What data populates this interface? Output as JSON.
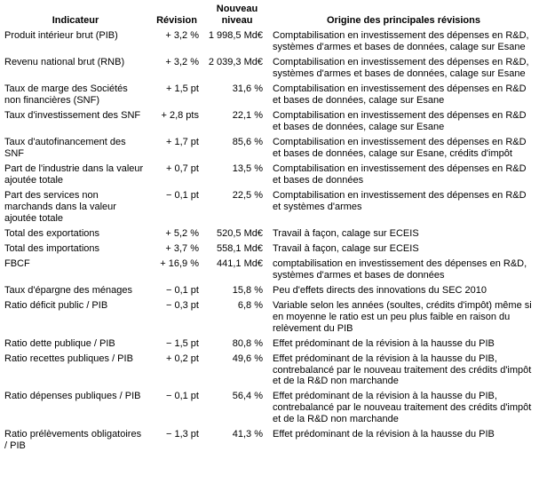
{
  "table": {
    "headers": {
      "indicateur": "Indicateur",
      "revision": "Révision",
      "niveau": "Nouveau niveau",
      "origine": "Origine des principales révisions"
    },
    "rows": [
      {
        "indicateur": "Produit intérieur brut (PIB)",
        "revision": "+ 3,2 %",
        "niveau": "1 998,5 Md€",
        "origine": "Comptabilisation en investissement des dépenses en R&D, systèmes d'armes et bases de données, calage sur Esane"
      },
      {
        "indicateur": "Revenu national brut (RNB)",
        "revision": "+ 3,2 %",
        "niveau": "2 039,3 Md€",
        "origine": "Comptabilisation en investissement des dépenses en R&D, systèmes d'armes et bases de données, calage sur Esane"
      },
      {
        "indicateur": "Taux de marge des Sociétés non financières (SNF)",
        "revision": "+ 1,5 pt",
        "niveau": "31,6 %",
        "origine": "Comptabilisation en investissement des dépenses en R&D et bases de données, calage sur Esane"
      },
      {
        "indicateur": "Taux d'investissement des SNF",
        "revision": "+ 2,8 pts",
        "niveau": "22,1 %",
        "origine": "Comptabilisation en investissement des dépenses en R&D et bases de données, calage sur Esane"
      },
      {
        "indicateur": "Taux d'autofinancement des SNF",
        "revision": "+ 1,7 pt",
        "niveau": "85,6 %",
        "origine": "Comptabilisation en investissement des dépenses en R&D et bases de données, calage sur Esane, crédits d'impôt"
      },
      {
        "indicateur": "Part de l'industrie dans la valeur ajoutée totale",
        "revision": "+ 0,7 pt",
        "niveau": "13,5 %",
        "origine": "Comptabilisation en investissement des dépenses en R&D et bases de données"
      },
      {
        "indicateur": "Part des services non marchands dans la valeur ajoutée totale",
        "revision": "− 0,1 pt",
        "niveau": "22,5 %",
        "origine": "Comptabilisation en investissement des dépenses en R&D et systèmes d'armes"
      },
      {
        "indicateur": "Total des exportations",
        "revision": "+ 5,2 %",
        "niveau": "520,5 Md€",
        "origine": "Travail à façon, calage sur ECEIS"
      },
      {
        "indicateur": "Total des importations",
        "revision": "+ 3,7 %",
        "niveau": "558,1 Md€",
        "origine": "Travail à façon, calage sur ECEIS"
      },
      {
        "indicateur": "FBCF",
        "revision": "+ 16,9 %",
        "niveau": "441,1 Md€",
        "origine": "comptabilisation en investissement des dépenses en R&D, systèmes d'armes et bases de données"
      },
      {
        "indicateur": "Taux d'épargne des ménages",
        "revision": "− 0,1 pt",
        "niveau": "15,8 %",
        "origine": "Peu d'effets directs des innovations du SEC 2010"
      },
      {
        "indicateur": "Ratio déficit public / PIB",
        "revision": "− 0,3 pt",
        "niveau": "6,8 %",
        "origine": "Variable selon les années (soultes, crédits d'impôt) même si en moyenne le ratio est un peu plus faible en raison du relèvement du PIB"
      },
      {
        "indicateur": "Ratio dette publique / PIB",
        "revision": "− 1,5 pt",
        "niveau": "80,8 %",
        "origine": "Effet prédominant de la révision à la hausse du PIB"
      },
      {
        "indicateur": "Ratio recettes publiques / PIB",
        "revision": "+ 0,2 pt",
        "niveau": "49,6 %",
        "origine": "Effet prédominant de la révision à la hausse du PIB, contrebalancé par le nouveau traitement des crédits d'impôt et de la R&D non marchande"
      },
      {
        "indicateur": "Ratio dépenses publiques / PIB",
        "revision": "− 0,1 pt",
        "niveau": "56,4 %",
        "origine": "Effet prédominant de la révision à la hausse du PIB, contrebalancé par le nouveau traitement des crédits d'impôt et de la R&D non marchande"
      },
      {
        "indicateur": "Ratio prélèvements obligatoires / PIB",
        "revision": "− 1,3 pt",
        "niveau": "41,3 %",
        "origine": "Effet prédominant de la révision à la hausse du PIB"
      }
    ]
  }
}
